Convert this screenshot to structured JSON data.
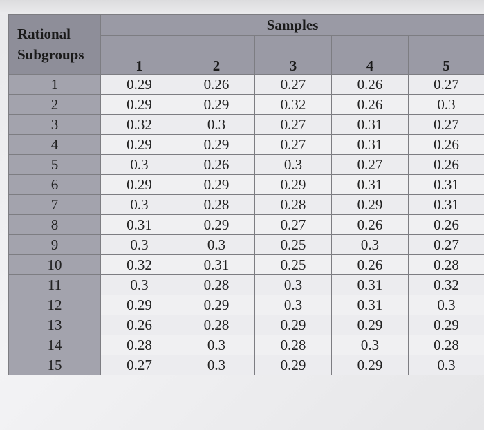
{
  "table": {
    "corner_label_line1": "Rational",
    "corner_label_line2": "Subgroups",
    "samples_label": "Samples",
    "sample_headers": [
      "1",
      "2",
      "3",
      "4",
      "5"
    ],
    "rows": [
      {
        "subgroup": "1",
        "values": [
          "0.29",
          "0.26",
          "0.27",
          "0.26",
          "0.27"
        ]
      },
      {
        "subgroup": "2",
        "values": [
          "0.29",
          "0.29",
          "0.32",
          "0.26",
          "0.3"
        ]
      },
      {
        "subgroup": "3",
        "values": [
          "0.32",
          "0.3",
          "0.27",
          "0.31",
          "0.27"
        ]
      },
      {
        "subgroup": "4",
        "values": [
          "0.29",
          "0.29",
          "0.27",
          "0.31",
          "0.26"
        ]
      },
      {
        "subgroup": "5",
        "values": [
          "0.3",
          "0.26",
          "0.3",
          "0.27",
          "0.26"
        ]
      },
      {
        "subgroup": "6",
        "values": [
          "0.29",
          "0.29",
          "0.29",
          "0.31",
          "0.31"
        ]
      },
      {
        "subgroup": "7",
        "values": [
          "0.3",
          "0.28",
          "0.28",
          "0.29",
          "0.31"
        ]
      },
      {
        "subgroup": "8",
        "values": [
          "0.31",
          "0.29",
          "0.27",
          "0.26",
          "0.26"
        ]
      },
      {
        "subgroup": "9",
        "values": [
          "0.3",
          "0.3",
          "0.25",
          "0.3",
          "0.27"
        ]
      },
      {
        "subgroup": "10",
        "values": [
          "0.32",
          "0.31",
          "0.25",
          "0.26",
          "0.28"
        ]
      },
      {
        "subgroup": "11",
        "values": [
          "0.3",
          "0.28",
          "0.3",
          "0.31",
          "0.32"
        ]
      },
      {
        "subgroup": "12",
        "values": [
          "0.29",
          "0.29",
          "0.3",
          "0.31",
          "0.3"
        ]
      },
      {
        "subgroup": "13",
        "values": [
          "0.26",
          "0.28",
          "0.29",
          "0.29",
          "0.29"
        ]
      },
      {
        "subgroup": "14",
        "values": [
          "0.28",
          "0.3",
          "0.28",
          "0.3",
          "0.28"
        ]
      },
      {
        "subgroup": "15",
        "values": [
          "0.27",
          "0.3",
          "0.29",
          "0.29",
          "0.3"
        ]
      }
    ]
  }
}
